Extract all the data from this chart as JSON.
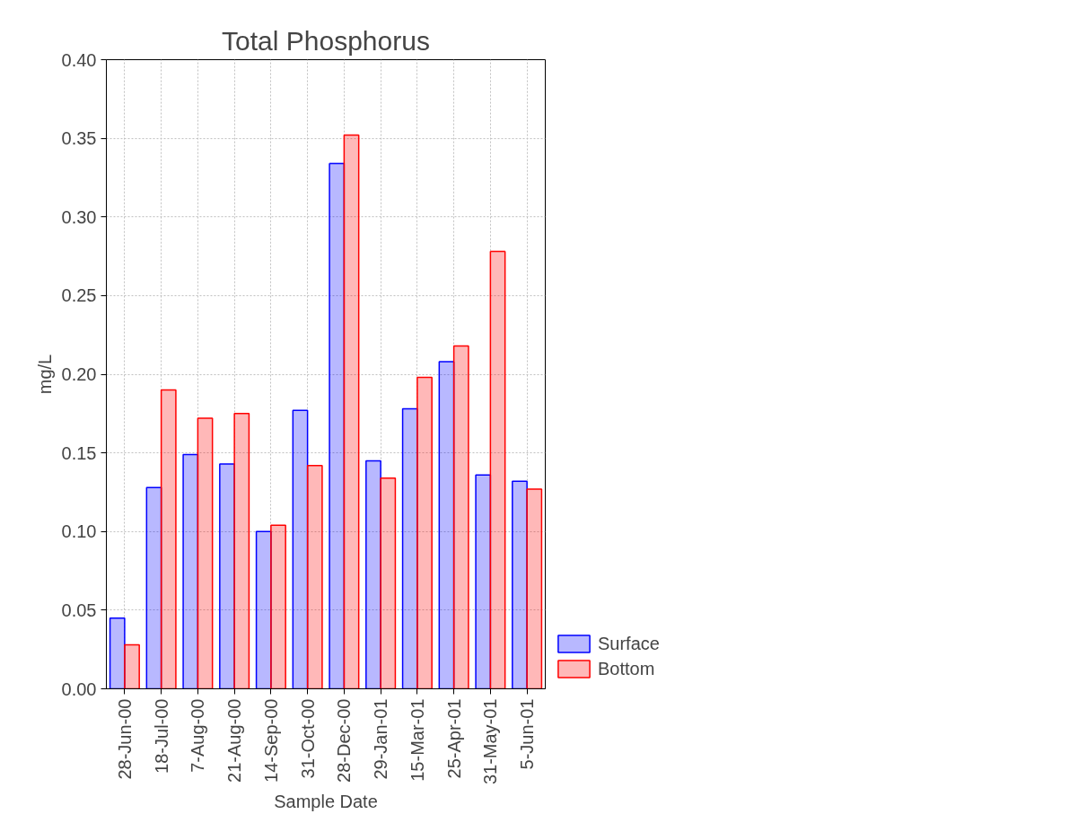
{
  "chart_data": {
    "type": "bar",
    "title": "Total Phosphorus",
    "xlabel": "Sample Date",
    "ylabel": "mg/L",
    "categories": [
      "28-Jun-00",
      "18-Jul-00",
      "7-Aug-00",
      "21-Aug-00",
      "14-Sep-00",
      "31-Oct-00",
      "28-Dec-00",
      "29-Jan-01",
      "15-Mar-01",
      "25-Apr-01",
      "31-May-01",
      "5-Jun-01"
    ],
    "series": [
      {
        "name": "Surface",
        "color": "#0000ff",
        "values": [
          0.045,
          0.128,
          0.149,
          0.143,
          0.1,
          0.177,
          0.334,
          0.145,
          0.178,
          0.208,
          0.136,
          0.132
        ]
      },
      {
        "name": "Bottom",
        "color": "#ff0000",
        "values": [
          0.028,
          0.19,
          0.172,
          0.175,
          0.104,
          0.142,
          0.352,
          0.134,
          0.198,
          0.218,
          0.278,
          0.127
        ]
      }
    ],
    "ylim": [
      0,
      0.4
    ],
    "yticks": [
      {
        "value": 0,
        "label": "0.00"
      },
      {
        "value": 0.05,
        "label": "0.05"
      },
      {
        "value": 0.1,
        "label": "0.10"
      },
      {
        "value": 0.15,
        "label": "0.15"
      },
      {
        "value": 0.2,
        "label": "0.20"
      },
      {
        "value": 0.25,
        "label": "0.25"
      },
      {
        "value": 0.3,
        "label": "0.30"
      },
      {
        "value": 0.35,
        "label": "0.35"
      },
      {
        "value": 0.4,
        "label": "0.40"
      }
    ],
    "grid": true,
    "legend": "bottom right"
  }
}
